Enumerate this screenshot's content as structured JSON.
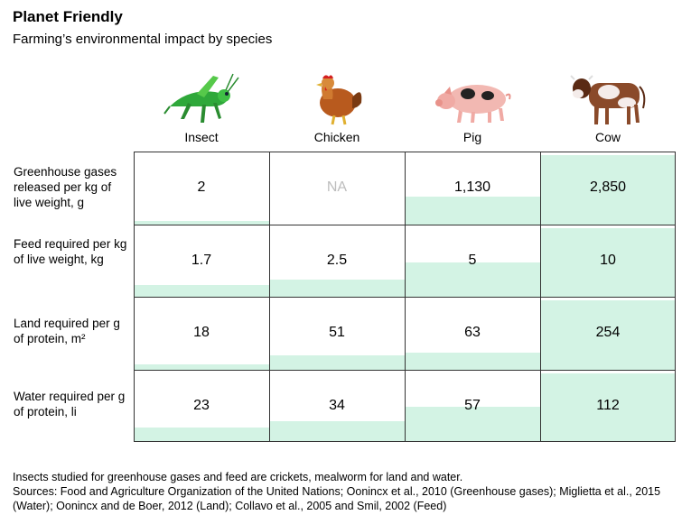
{
  "title": "Planet Friendly",
  "subtitle": "Farming’s environmental impact by species",
  "icons": [
    "grasshopper-icon",
    "chicken-icon",
    "pig-icon",
    "cow-icon"
  ],
  "colors": {
    "fill": "#d3f3e4",
    "na": "#bdbdbd",
    "gridline": "#333333"
  },
  "chart_data": {
    "type": "table",
    "columns": [
      "Insect",
      "Chicken",
      "Pig",
      "Cow"
    ],
    "rows": [
      {
        "label": "Greenhouse gases released per kg of live weight, g",
        "values": [
          2,
          null,
          1130,
          2850
        ],
        "display": [
          "2",
          "NA",
          "1,130",
          "2,850"
        ]
      },
      {
        "label": "Feed required per kg of live weight, kg",
        "values": [
          1.7,
          2.5,
          5,
          10
        ],
        "display": [
          "1.7",
          "2.5",
          "5",
          "10"
        ]
      },
      {
        "label": "Land required per g of protein, m²",
        "values": [
          18,
          51,
          63,
          254
        ],
        "display": [
          "18",
          "51",
          "63",
          "254"
        ]
      },
      {
        "label": "Water required per g of protein, li",
        "values": [
          23,
          34,
          57,
          112
        ],
        "display": [
          "23",
          "34",
          "57",
          "112"
        ]
      }
    ]
  },
  "footer": {
    "note": "Insects studied for greenhouse gases and feed are crickets, mealworm for land and water.",
    "sources": "Sources: Food and Agriculture Organization of the United Nations; Oonincx et al., 2010 (Greenhouse gases); Miglietta et al., 2015 (Water); Oonincx and de Boer, 2012 (Land); Collavo et al., 2005 and Smil, 2002 (Feed)"
  }
}
